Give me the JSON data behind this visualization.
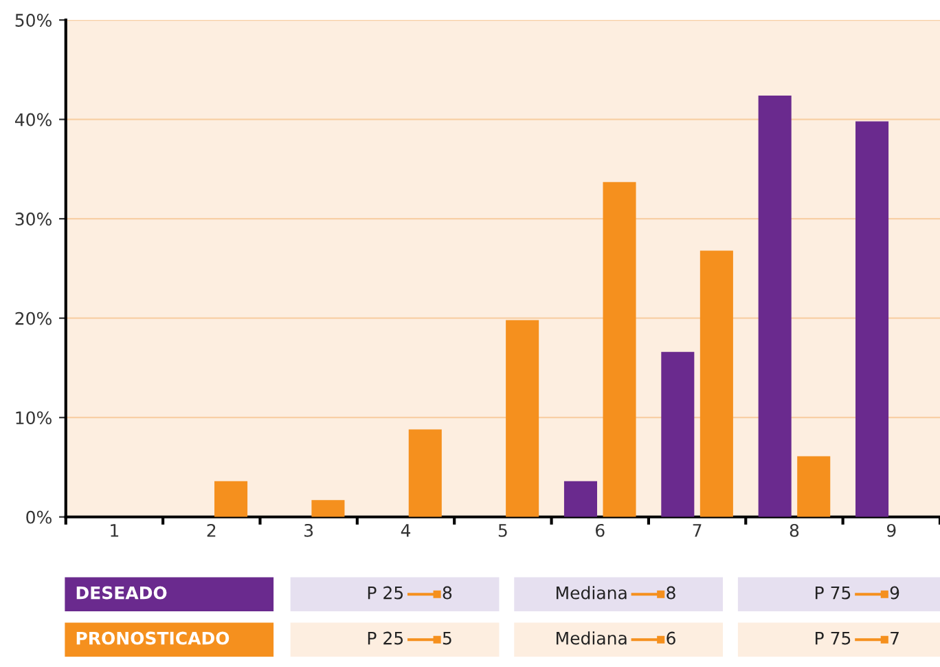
{
  "chart_data": {
    "type": "bar",
    "categories": [
      "1",
      "2",
      "3",
      "4",
      "5",
      "6",
      "7",
      "8",
      "9"
    ],
    "series": [
      {
        "name": "DESEADO",
        "color": "#6a2a8e",
        "values": [
          0,
          0,
          0,
          0,
          0,
          3.6,
          16.6,
          42.4,
          39.8
        ]
      },
      {
        "name": "PRONOSTICADO",
        "color": "#f5901e",
        "values": [
          0,
          3.6,
          1.7,
          8.8,
          19.8,
          33.7,
          26.8,
          6.1,
          0
        ]
      }
    ],
    "ylim": [
      0,
      50
    ],
    "yticks": [
      {
        "value": 0,
        "label": "0%"
      },
      {
        "value": 10,
        "label": "10%"
      },
      {
        "value": 20,
        "label": "20%"
      },
      {
        "value": 30,
        "label": "30%"
      },
      {
        "value": 40,
        "label": "40%"
      },
      {
        "value": 50,
        "label": "50%"
      }
    ],
    "grid": "y",
    "legend": "bottom",
    "annotations": [
      "P 25",
      "8",
      "Mediana",
      "8",
      "P 75",
      "9",
      "P 25",
      "5",
      "Mediana",
      "6",
      "P 75",
      "7"
    ]
  }
}
